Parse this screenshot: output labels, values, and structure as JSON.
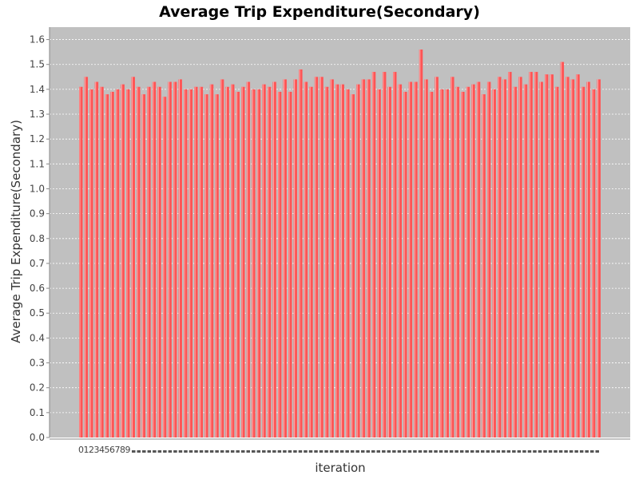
{
  "chart_data": {
    "type": "bar",
    "title": "Average Trip Expenditure(Secondary)",
    "xlabel": "iteration",
    "ylabel": "Average Trip Expenditure(Secondary)",
    "ylim": [
      0.0,
      1.65
    ],
    "yticks": [
      "0.0",
      "0.1",
      "0.2",
      "0.3",
      "0.4",
      "0.5",
      "0.6",
      "0.7",
      "0.8",
      "0.9",
      "1.0",
      "1.1",
      "1.2",
      "1.3",
      "1.4",
      "1.5",
      "1.6"
    ],
    "grid": true,
    "legend": "none",
    "colors": {
      "bar": "#ff5555",
      "plot_bg": "#c0c0c0",
      "grid": "#ffffff"
    },
    "categories": [
      "0",
      "1",
      "2",
      "3",
      "4",
      "5",
      "6",
      "7",
      "8",
      "9",
      "10",
      "11",
      "12",
      "13",
      "14",
      "15",
      "16",
      "17",
      "18",
      "19",
      "20",
      "21",
      "22",
      "23",
      "24",
      "25",
      "26",
      "27",
      "28",
      "29",
      "30",
      "31",
      "32",
      "33",
      "34",
      "35",
      "36",
      "37",
      "38",
      "39",
      "40",
      "41",
      "42",
      "43",
      "44",
      "45",
      "46",
      "47",
      "48",
      "49",
      "50",
      "51",
      "52",
      "53",
      "54",
      "55",
      "56",
      "57",
      "58",
      "59",
      "60",
      "61",
      "62",
      "63",
      "64",
      "65",
      "66",
      "67",
      "68",
      "69",
      "70",
      "71",
      "72",
      "73",
      "74",
      "75",
      "76",
      "77",
      "78",
      "79",
      "80",
      "81",
      "82",
      "83",
      "84",
      "85",
      "86",
      "87",
      "88",
      "89",
      "90",
      "91",
      "92",
      "93",
      "94",
      "95",
      "96",
      "97",
      "98",
      "99"
    ],
    "values": [
      1.41,
      1.45,
      1.4,
      1.43,
      1.41,
      1.38,
      1.39,
      1.4,
      1.42,
      1.4,
      1.45,
      1.41,
      1.38,
      1.41,
      1.43,
      1.41,
      1.37,
      1.43,
      1.43,
      1.44,
      1.4,
      1.4,
      1.41,
      1.41,
      1.38,
      1.42,
      1.38,
      1.44,
      1.41,
      1.42,
      1.39,
      1.41,
      1.43,
      1.4,
      1.4,
      1.42,
      1.41,
      1.43,
      1.39,
      1.44,
      1.39,
      1.44,
      1.48,
      1.43,
      1.41,
      1.45,
      1.45,
      1.41,
      1.44,
      1.42,
      1.42,
      1.4,
      1.38,
      1.42,
      1.44,
      1.44,
      1.47,
      1.4,
      1.47,
      1.41,
      1.47,
      1.42,
      1.39,
      1.43,
      1.43,
      1.56,
      1.44,
      1.39,
      1.45,
      1.4,
      1.4,
      1.45,
      1.41,
      1.39,
      1.41,
      1.42,
      1.43,
      1.38,
      1.43,
      1.4,
      1.45,
      1.44,
      1.47,
      1.41,
      1.45,
      1.42,
      1.47,
      1.47,
      1.43,
      1.46,
      1.46,
      1.41,
      1.51,
      1.45,
      1.44,
      1.46,
      1.41,
      1.43,
      1.4,
      1.44
    ]
  }
}
